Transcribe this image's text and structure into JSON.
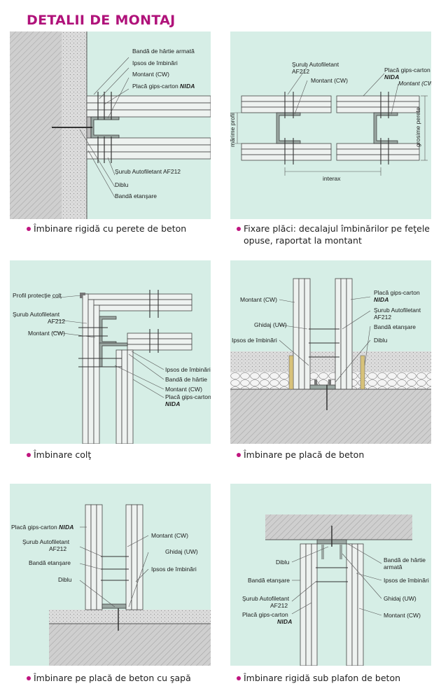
{
  "title": "DETALII DE MONTAJ",
  "colors": {
    "title": "#b0127a",
    "bullet": "#c0157f",
    "panel_bg": "#d6eee6"
  },
  "panels": [
    {
      "caption": "Îmbinare rigidă cu perete de beton",
      "labels": {
        "banda_hartie": "Bandă de hârtie armată",
        "ipsos": "Ipsos de îmbinări",
        "montant": "Montant (CW)",
        "placa": "Placă gips-carton",
        "nida": "NIDA",
        "surub": "Şurub Autofiletant AF212",
        "diblu": "Diblu",
        "banda_etans": "Bandă etanşare"
      }
    },
    {
      "caption_line1": "Fixare plăci: decalajul îmbinărilor pe feţele",
      "caption_line2": "opuse, raportat la montant",
      "labels": {
        "surub1": "Şurub  Autofiletant",
        "surub2": "AF212",
        "montant": "Montant (CW)",
        "placa": "Placă gips-carton",
        "nida": "NIDA",
        "montant_cw": "Montant (CW)",
        "marime1": "mărime",
        "marime2": "profil",
        "grosime1": "grosime",
        "grosime2": "perete",
        "interax": "interax"
      }
    },
    {
      "caption": "Îmbinare colţ",
      "labels": {
        "profil": "Profil protecţie colţ",
        "surub1": "Şurub Autofiletant",
        "surub2": "AF212",
        "montant": "Montant (CW)",
        "ipsos": "Ipsos de îmbinări",
        "banda_hartie": "Bandă de hârtie",
        "montant2": "Montant (CW)",
        "placa": "Placă gips-carton",
        "nida": "NIDA"
      }
    },
    {
      "caption": "Îmbinare pe placă de beton",
      "labels": {
        "montant": "Montant (CW)",
        "ghidaj": "Ghidaj (UW)",
        "ipsos": "Ipsos de îmbinări",
        "placa": "Placă gips-carton",
        "nida": "NIDA",
        "surub1": "Şurub Autofiletant",
        "surub2": "AF212",
        "banda_etans": "Bandă etanşare",
        "diblu": "Diblu"
      }
    },
    {
      "caption": "Îmbinare pe placă de beton cu şapă",
      "labels": {
        "placa": "Placă gips-carton",
        "nida": "NIDA",
        "surub1": "Şurub Autofiletant",
        "surub2": "AF212",
        "banda_etans": "Bandă etanşare",
        "diblu": "Diblu",
        "montant": "Montant (CW)",
        "ghidaj": "Ghidaj (UW)",
        "ipsos": "Ipsos de îmbinări"
      }
    },
    {
      "caption": "Îmbinare rigidă sub plafon de beton",
      "labels": {
        "diblu": "Diblu",
        "banda_etans": "Bandă etanşare",
        "surub1": "Şurub Autofiletant",
        "surub2": "AF212",
        "placa": "Placă gips-carton",
        "nida": "NIDA",
        "banda_hartie1": "Bandă de hârtie",
        "banda_hartie2": "armată",
        "ipsos": "Ipsos de îmbinări",
        "ghidaj": "Ghidaj (UW)",
        "montant": "Montant (CW)"
      }
    }
  ]
}
